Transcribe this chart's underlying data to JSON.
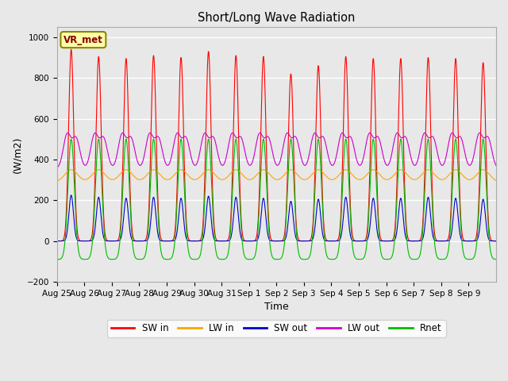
{
  "title": "Short/Long Wave Radiation",
  "xlabel": "Time",
  "ylabel": "(W/m2)",
  "ylim": [
    -200,
    1050
  ],
  "yticks": [
    -200,
    0,
    200,
    400,
    600,
    800,
    1000
  ],
  "station_label": "VR_met",
  "outer_bg": "#e8e8e8",
  "plot_bg": "#e8e8e8",
  "colors": {
    "SW_in": "#ff0000",
    "LW_in": "#ffa500",
    "SW_out": "#0000cc",
    "LW_out": "#cc00cc",
    "Rnet": "#00bb00"
  },
  "n_days": 16,
  "x_tick_labels": [
    "Aug 25",
    "Aug 26",
    "Aug 27",
    "Aug 28",
    "Aug 29",
    "Aug 30",
    "Aug 31",
    "Sep 1",
    "Sep 2",
    "Sep 3",
    "Sep 4",
    "Sep 5",
    "Sep 6",
    "Sep 7",
    "Sep 8",
    "Sep 9"
  ],
  "SW_in_peaks": [
    940,
    905,
    895,
    910,
    900,
    930,
    910,
    905,
    820,
    860,
    905,
    895,
    895,
    900,
    895,
    875
  ],
  "SW_out_peaks": [
    225,
    215,
    210,
    215,
    210,
    220,
    215,
    210,
    195,
    205,
    215,
    210,
    210,
    215,
    210,
    205
  ],
  "LW_in_night": 290,
  "LW_in_day_add": 60,
  "LW_out_night": 355,
  "LW_out_day_add": 195,
  "Rnet_peak": 500,
  "Rnet_night": -90,
  "pts_per_day": 144,
  "peak_hour": 12.5,
  "sw_sigma_hours": 2.2,
  "lw_sigma_hours": 5.5,
  "rnet_sigma_hours": 4.0
}
